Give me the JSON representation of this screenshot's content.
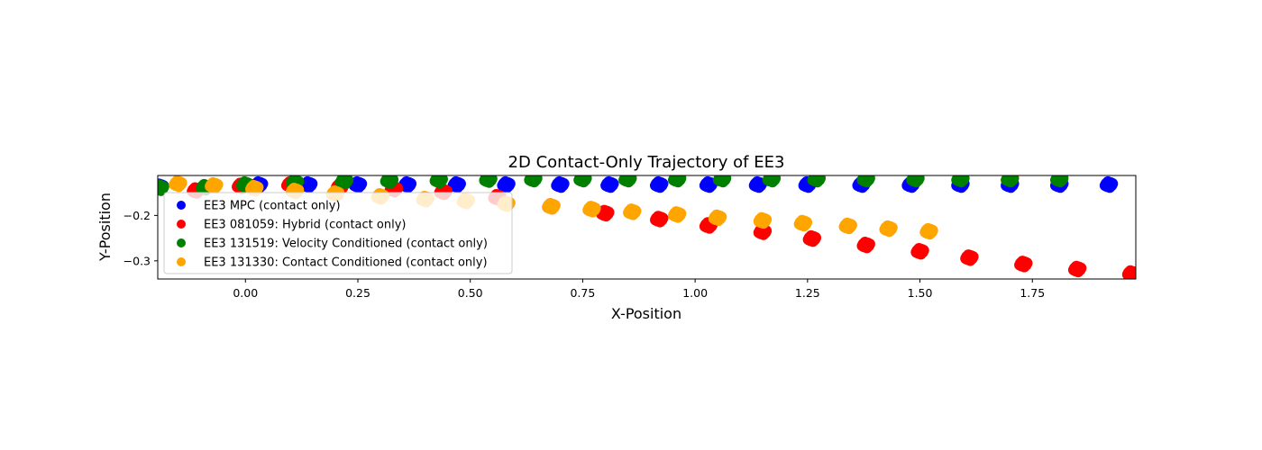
{
  "chart_data": {
    "type": "scatter",
    "title": "2D Contact-Only Trajectory of EE3",
    "xlabel": "X-Position",
    "ylabel": "Y-Position",
    "xlim": [
      -0.195,
      1.98
    ],
    "ylim": [
      -0.34,
      -0.112
    ],
    "xticks": [
      0.0,
      0.25,
      0.5,
      0.75,
      1.0,
      1.25,
      1.5,
      1.75
    ],
    "xtick_labels": [
      "0.00",
      "0.25",
      "0.50",
      "0.75",
      "1.00",
      "1.25",
      "1.50",
      "1.75"
    ],
    "yticks": [
      -0.2,
      -0.3
    ],
    "ytick_labels": [
      "−0.2",
      "−0.3"
    ],
    "grid": false,
    "legend_position": "left",
    "series": [
      {
        "name": "EE3 MPC (contact only)",
        "color": "#0000ff",
        "points": [
          [
            -0.19,
            -0.137
          ],
          [
            0.03,
            -0.132
          ],
          [
            0.14,
            -0.132
          ],
          [
            0.25,
            -0.132
          ],
          [
            0.36,
            -0.132
          ],
          [
            0.47,
            -0.132
          ],
          [
            0.58,
            -0.132
          ],
          [
            0.7,
            -0.132
          ],
          [
            0.81,
            -0.132
          ],
          [
            0.92,
            -0.132
          ],
          [
            1.03,
            -0.132
          ],
          [
            1.14,
            -0.132
          ],
          [
            1.25,
            -0.132
          ],
          [
            1.37,
            -0.132
          ],
          [
            1.48,
            -0.132
          ],
          [
            1.59,
            -0.132
          ],
          [
            1.7,
            -0.132
          ],
          [
            1.81,
            -0.132
          ],
          [
            1.92,
            -0.132
          ]
        ]
      },
      {
        "name": "EE3 081059: Hybrid (contact only)",
        "color": "#ff0000",
        "points": [
          [
            -0.11,
            -0.145
          ],
          [
            -0.01,
            -0.135
          ],
          [
            0.1,
            -0.132
          ],
          [
            0.21,
            -0.137
          ],
          [
            0.33,
            -0.142
          ],
          [
            0.44,
            -0.148
          ],
          [
            0.56,
            -0.16
          ],
          [
            0.68,
            -0.18
          ],
          [
            0.8,
            -0.195
          ],
          [
            0.92,
            -0.208
          ],
          [
            1.03,
            -0.222
          ],
          [
            1.15,
            -0.236
          ],
          [
            1.26,
            -0.251
          ],
          [
            1.38,
            -0.265
          ],
          [
            1.5,
            -0.279
          ],
          [
            1.61,
            -0.293
          ],
          [
            1.73,
            -0.307
          ],
          [
            1.85,
            -0.318
          ],
          [
            1.97,
            -0.328
          ]
        ]
      },
      {
        "name": "EE3 131519: Velocity Conditioned (contact only)",
        "color": "#008000",
        "points": [
          [
            -0.19,
            -0.139
          ],
          [
            -0.09,
            -0.138
          ],
          [
            0.0,
            -0.132
          ],
          [
            0.11,
            -0.127
          ],
          [
            0.22,
            -0.124
          ],
          [
            0.32,
            -0.123
          ],
          [
            0.43,
            -0.122
          ],
          [
            0.54,
            -0.121
          ],
          [
            0.64,
            -0.12
          ],
          [
            0.75,
            -0.12
          ],
          [
            0.85,
            -0.12
          ],
          [
            0.96,
            -0.12
          ],
          [
            1.06,
            -0.12
          ],
          [
            1.17,
            -0.12
          ],
          [
            1.27,
            -0.12
          ],
          [
            1.38,
            -0.12
          ],
          [
            1.49,
            -0.12
          ],
          [
            1.59,
            -0.12
          ],
          [
            1.7,
            -0.12
          ],
          [
            1.81,
            -0.12
          ]
        ]
      },
      {
        "name": "EE3 131330: Contact Conditioned (contact only)",
        "color": "#ffa500",
        "points": [
          [
            -0.15,
            -0.13
          ],
          [
            -0.07,
            -0.134
          ],
          [
            0.02,
            -0.14
          ],
          [
            0.11,
            -0.146
          ],
          [
            0.2,
            -0.152
          ],
          [
            0.3,
            -0.158
          ],
          [
            0.4,
            -0.164
          ],
          [
            0.49,
            -0.168
          ],
          [
            0.58,
            -0.174
          ],
          [
            0.68,
            -0.18
          ],
          [
            0.77,
            -0.186
          ],
          [
            0.86,
            -0.192
          ],
          [
            0.96,
            -0.198
          ],
          [
            1.05,
            -0.205
          ],
          [
            1.15,
            -0.211
          ],
          [
            1.24,
            -0.217
          ],
          [
            1.34,
            -0.223
          ],
          [
            1.43,
            -0.229
          ],
          [
            1.52,
            -0.235
          ]
        ]
      }
    ]
  }
}
